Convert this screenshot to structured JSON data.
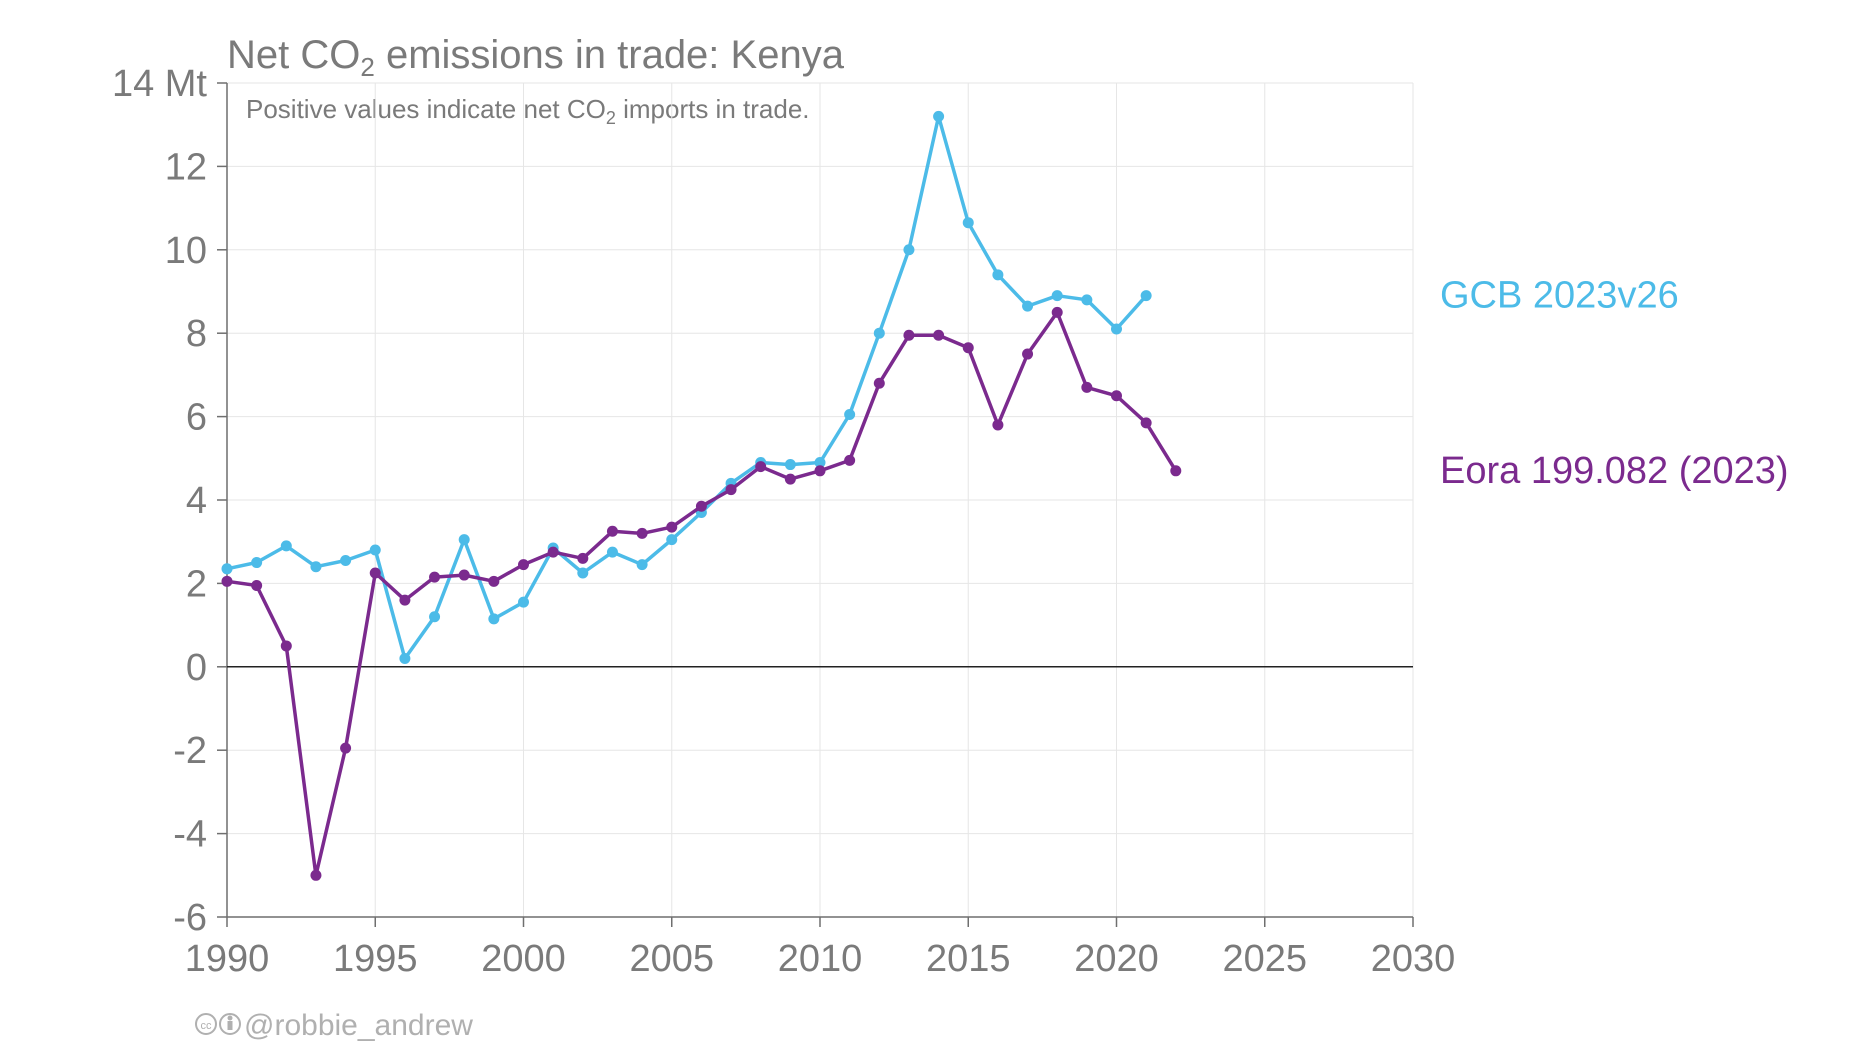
{
  "chart_data": {
    "type": "line",
    "title": {
      "pre": "Net CO",
      "sub": "2",
      "post": " emissions in trade: Kenya"
    },
    "subtitle": {
      "pre": "Positive values indicate net CO",
      "sub": "2",
      "post": " imports in trade."
    },
    "ylabel_unit": "Mt",
    "xlim": [
      1990,
      2030
    ],
    "ylim": [
      -6,
      14
    ],
    "x_ticks": [
      1990,
      1995,
      2000,
      2005,
      2010,
      2015,
      2020,
      2025,
      2030
    ],
    "y_ticks": [
      -6,
      -4,
      -2,
      0,
      2,
      4,
      6,
      8,
      10,
      12,
      14
    ],
    "grid": true,
    "series": [
      {
        "name": "GCB 2023v26",
        "color": "#4cbbe8",
        "x": [
          1990,
          1991,
          1992,
          1993,
          1994,
          1995,
          1996,
          1997,
          1998,
          1999,
          2000,
          2001,
          2002,
          2003,
          2004,
          2005,
          2006,
          2007,
          2008,
          2009,
          2010,
          2011,
          2012,
          2013,
          2014,
          2015,
          2016,
          2017,
          2018,
          2019,
          2020,
          2021
        ],
        "values": [
          2.35,
          2.5,
          2.9,
          2.4,
          2.55,
          2.8,
          0.2,
          1.2,
          3.05,
          1.15,
          1.55,
          2.85,
          2.25,
          2.75,
          2.45,
          3.05,
          3.7,
          4.4,
          4.9,
          4.85,
          4.9,
          6.05,
          8.0,
          10.0,
          13.2,
          10.65,
          9.4,
          8.65,
          8.9,
          8.8,
          8.1,
          8.9
        ]
      },
      {
        "name": "Eora 199.082 (2023)",
        "color": "#7b2a8e",
        "x": [
          1990,
          1991,
          1992,
          1993,
          1994,
          1995,
          1996,
          1997,
          1998,
          1999,
          2000,
          2001,
          2002,
          2003,
          2004,
          2005,
          2006,
          2007,
          2008,
          2009,
          2010,
          2011,
          2012,
          2013,
          2014,
          2015,
          2016,
          2017,
          2018,
          2019,
          2020,
          2021,
          2022
        ],
        "values": [
          2.05,
          1.95,
          0.5,
          -5.0,
          -1.95,
          2.25,
          1.6,
          2.15,
          2.2,
          2.05,
          2.45,
          2.75,
          2.6,
          3.25,
          3.2,
          3.35,
          3.85,
          4.25,
          4.8,
          4.5,
          4.7,
          4.95,
          6.8,
          7.95,
          7.95,
          7.65,
          5.8,
          7.5,
          8.5,
          6.7,
          6.5,
          5.85,
          4.7
        ]
      }
    ]
  },
  "credit": {
    "text": "@robbie_andrew",
    "icon": "cc-by-icon"
  }
}
